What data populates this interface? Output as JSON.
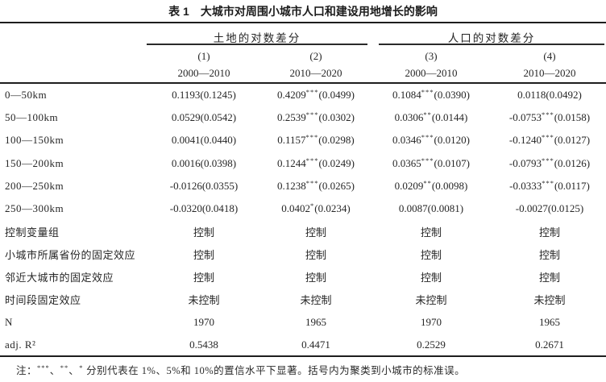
{
  "page": {
    "background": "#ffffff",
    "text_color": "#262626",
    "rule_color": "#1e1e1e"
  },
  "title": {
    "prefix": "表 1",
    "text": "大城市对周围小城市人口和建设用地增长的影响"
  },
  "table": {
    "group_headers": [
      {
        "label": "土地的对数差分"
      },
      {
        "label": "人口的对数差分"
      }
    ],
    "column_headers": [
      {
        "number": "(1)",
        "period": "2000—2010"
      },
      {
        "number": "(2)",
        "period": "2010—2020"
      },
      {
        "number": "(3)",
        "period": "2000—2010"
      },
      {
        "number": "(4)",
        "period": "2010—2020"
      }
    ],
    "rows": [
      {
        "label": "0—50km",
        "cells": [
          "0.1193(0.1245)",
          "0.4209***(0.0499)",
          "0.1084***(0.0390)",
          "0.0118(0.0492)"
        ]
      },
      {
        "label": "50—100km",
        "cells": [
          "0.0529(0.0542)",
          "0.2539***(0.0302)",
          "0.0306**(0.0144)",
          "-0.0753***(0.0158)"
        ]
      },
      {
        "label": "100—150km",
        "cells": [
          "0.0041(0.0440)",
          "0.1157***(0.0298)",
          "0.0346***(0.0120)",
          "-0.1240***(0.0127)"
        ]
      },
      {
        "label": "150—200km",
        "cells": [
          "0.0016(0.0398)",
          "0.1244***(0.0249)",
          "0.0365***(0.0107)",
          "-0.0793***(0.0126)"
        ]
      },
      {
        "label": "200—250km",
        "cells": [
          "-0.0126(0.0355)",
          "0.1238***(0.0265)",
          "0.0209**(0.0098)",
          "-0.0333***(0.0117)"
        ]
      },
      {
        "label": "250—300km",
        "cells": [
          "-0.0320(0.0418)",
          "0.0402*(0.0234)",
          "0.0087(0.0081)",
          "-0.0027(0.0125)"
        ]
      },
      {
        "label": "控制变量组",
        "cells": [
          "控制",
          "控制",
          "控制",
          "控制"
        ]
      },
      {
        "label": "小城市所属省份的固定效应",
        "cells": [
          "控制",
          "控制",
          "控制",
          "控制"
        ]
      },
      {
        "label": "邻近大城市的固定效应",
        "cells": [
          "控制",
          "控制",
          "控制",
          "控制"
        ]
      },
      {
        "label": "时间段固定效应",
        "cells": [
          "未控制",
          "未控制",
          "未控制",
          "未控制"
        ]
      },
      {
        "label": "N",
        "cells": [
          "1970",
          "1965",
          "1970",
          "1965"
        ]
      },
      {
        "label": "adj. R²",
        "cells": [
          "0.5438",
          "0.4471",
          "0.2529",
          "0.2671"
        ]
      }
    ]
  },
  "note": "注：***、**、* 分别代表在 1%、5%和 10%的置信水平下显著。括号内为聚类到小城市的标准误。"
}
